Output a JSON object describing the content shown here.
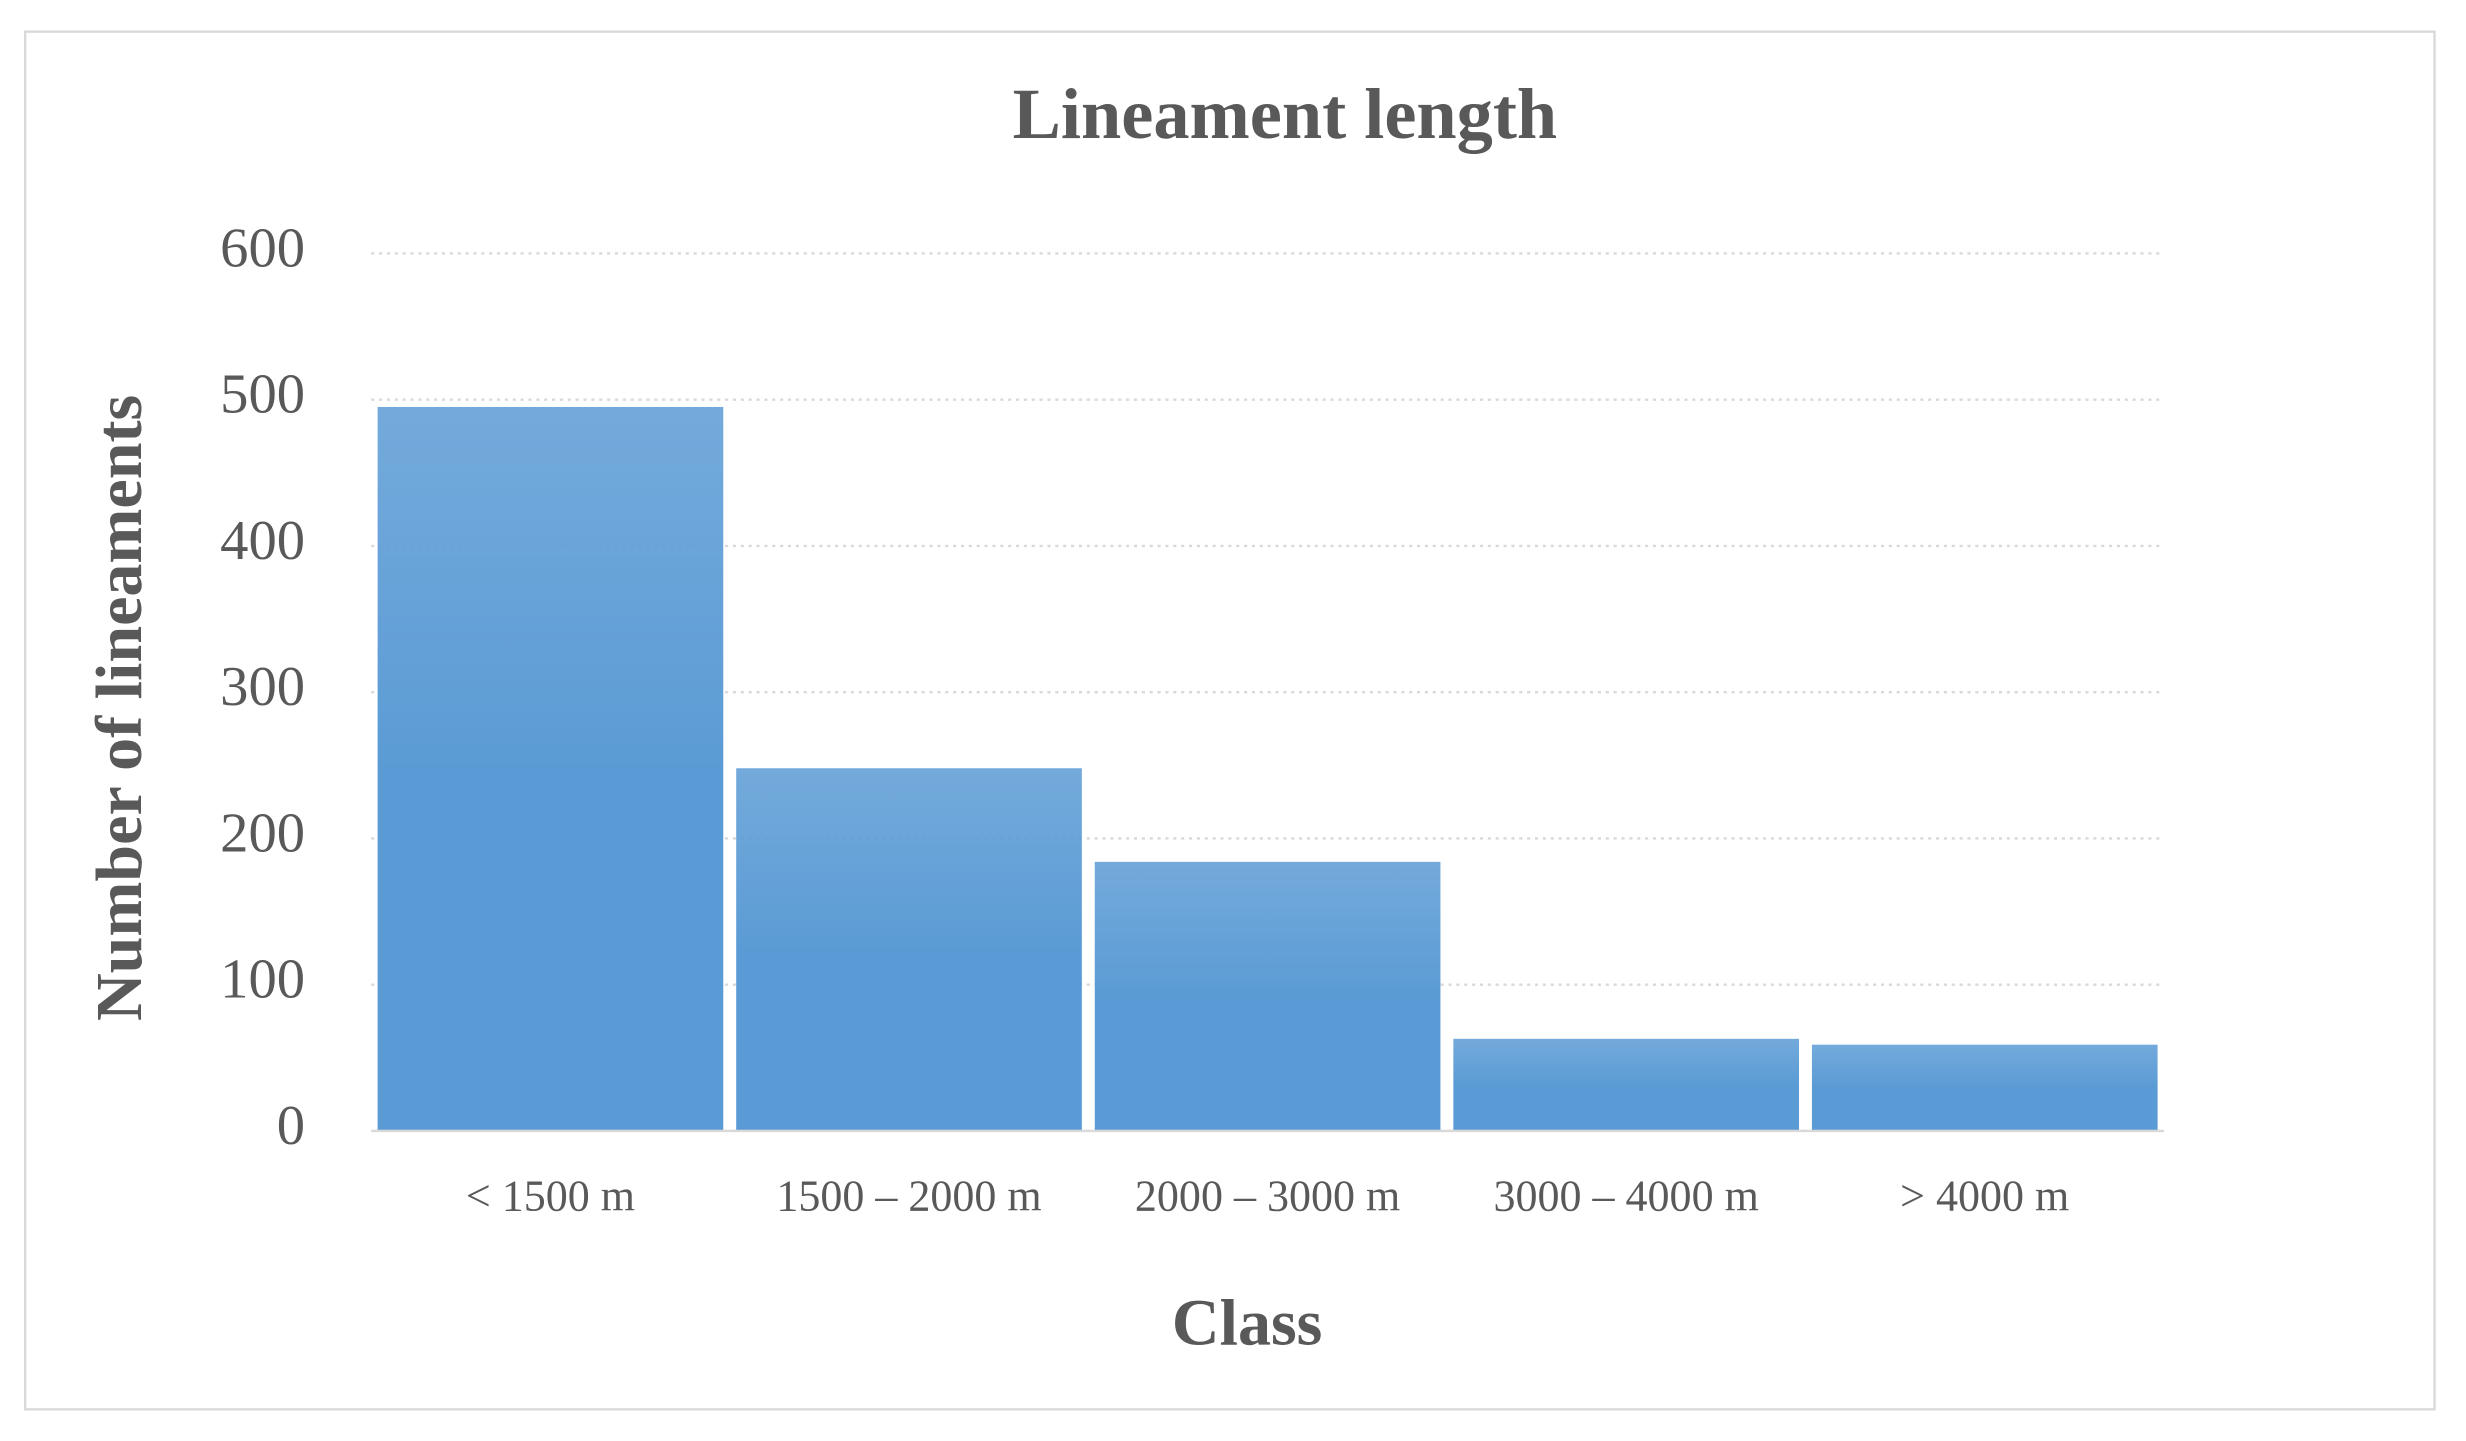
{
  "chart_data": {
    "type": "bar",
    "title": "Lineament length",
    "x_label": "Class",
    "y_label": "Number of lineaments",
    "categories": [
      "< 1500 m",
      "1500 – 2000 m",
      "2000 – 3000 m",
      "3000 – 4000 m",
      "> 4000 m"
    ],
    "values": [
      495,
      248,
      184,
      63,
      59
    ],
    "color": "#5b9bd5",
    "ylim": [
      0,
      600
    ],
    "yticks": [
      0,
      100,
      200,
      300,
      400,
      500,
      600
    ],
    "grid": true
  }
}
